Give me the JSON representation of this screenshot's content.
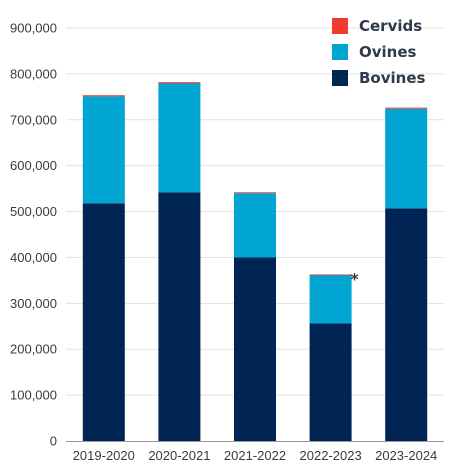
{
  "chart_data": {
    "type": "bar",
    "stacked": true,
    "categories": [
      "2019-2020",
      "2020-2021",
      "2021-2022",
      "2022-2023",
      "2023-2024"
    ],
    "series": [
      {
        "name": "Bovines",
        "color": "#002454",
        "values": [
          518000,
          542000,
          400000,
          256000,
          507000
        ]
      },
      {
        "name": "Ovines",
        "color": "#00a5d2",
        "values": [
          233000,
          237000,
          140000,
          106000,
          217000
        ]
      },
      {
        "name": "Cervids",
        "color": "#ee3c33",
        "values": [
          2500,
          3000,
          2000,
          1000,
          2500
        ]
      }
    ],
    "y_ticks": [
      "0",
      "100,000",
      "200,000",
      "300,000",
      "400,000",
      "500,000",
      "600,000",
      "700,000",
      "800,000",
      "900,000"
    ],
    "ylim": [
      0,
      900000
    ],
    "grid": true,
    "legend_position": "top-right",
    "annotations": [
      {
        "category": "2022-2023",
        "text": "*"
      }
    ]
  }
}
